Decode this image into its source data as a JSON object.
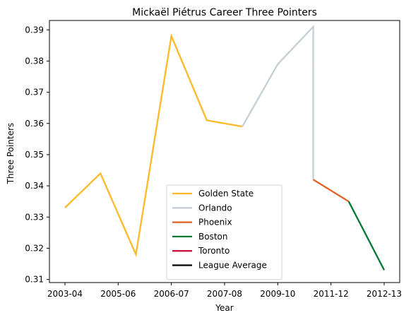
{
  "chart_data": {
    "type": "line",
    "title": "Mickaël Piétrus Career Three Pointers",
    "xlabel": "Year",
    "ylabel": "Three Pointers",
    "x_categories": [
      "2003-04",
      "2005-06",
      "2006-07",
      "2007-08",
      "2009-10",
      "2011-12",
      "2012-13"
    ],
    "xlim": [
      0,
      9
    ],
    "ylim": [
      0.309,
      0.393
    ],
    "y_ticks": [
      0.31,
      0.32,
      0.33,
      0.34,
      0.35,
      0.36,
      0.37,
      0.38,
      0.39
    ],
    "y_tick_labels": [
      "0.31",
      "0.32",
      "0.33",
      "0.34",
      "0.35",
      "0.36",
      "0.37",
      "0.38",
      "0.39"
    ],
    "x_ticks": [
      0,
      1.5,
      3,
      4.5,
      6,
      7.5,
      9
    ],
    "x_tick_labels": [
      "2003-04",
      "2005-06",
      "2006-07",
      "2007-08",
      "2009-10",
      "2011-12",
      "2012-13"
    ],
    "grid": false,
    "legend_position": "lower-center",
    "series": [
      {
        "name": "Golden State",
        "color": "#FDB927",
        "x": [
          0,
          1,
          2,
          3,
          4,
          5
        ],
        "y": [
          0.333,
          0.344,
          0.318,
          0.388,
          0.361,
          0.359
        ]
      },
      {
        "name": "Orlando",
        "color": "#C4CED4",
        "x": [
          5,
          6,
          7,
          7
        ],
        "y": [
          0.359,
          0.379,
          0.391,
          0.342
        ]
      },
      {
        "name": "Phoenix",
        "color": "#E56020",
        "x": [
          7,
          8
        ],
        "y": [
          0.342,
          0.335
        ]
      },
      {
        "name": "Boston",
        "color": "#007A33",
        "x": [
          8,
          9
        ],
        "y": [
          0.335,
          0.313
        ]
      },
      {
        "name": "Toronto",
        "color": "#CE1141",
        "x": [],
        "y": []
      },
      {
        "name": "League Average",
        "color": "#000000",
        "x": [],
        "y": []
      }
    ]
  }
}
